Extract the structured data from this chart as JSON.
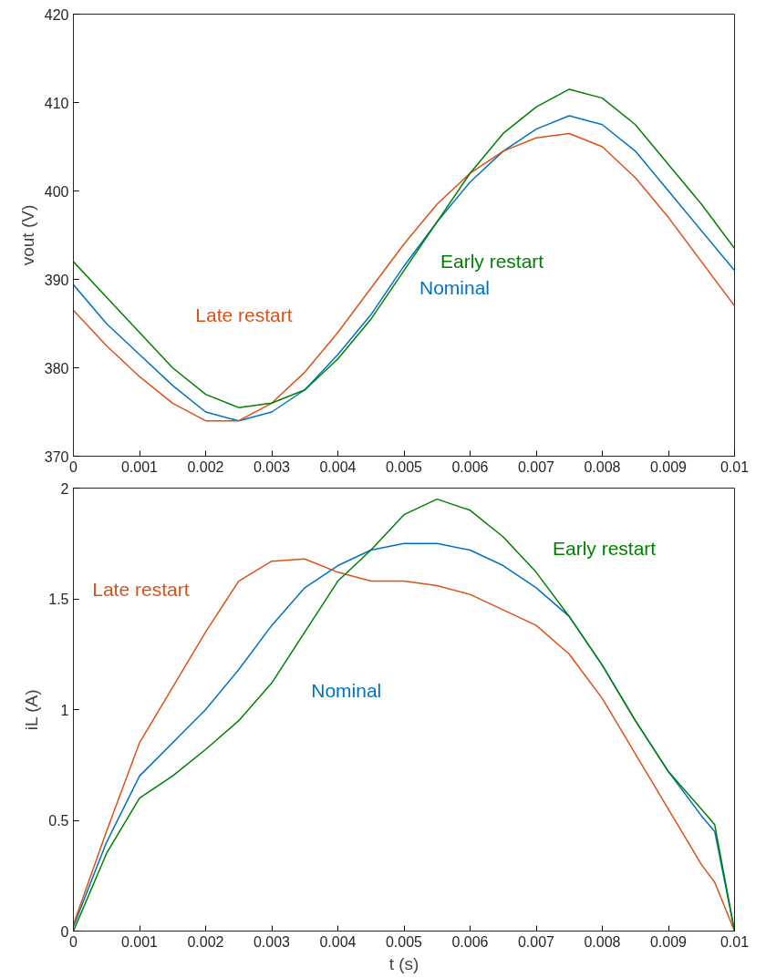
{
  "chart_data": [
    {
      "type": "line",
      "ylabel": "vout (V)",
      "xlim": [
        0,
        0.01
      ],
      "ylim": [
        370,
        420
      ],
      "xticks": [
        0,
        0.001,
        0.002,
        0.003,
        0.004,
        0.005,
        0.006,
        0.007,
        0.008,
        0.009,
        0.01
      ],
      "yticks": [
        370,
        380,
        390,
        400,
        410,
        420
      ],
      "grid": false,
      "marker": "none",
      "line_style": "solid",
      "x": [
        0,
        0.0005,
        0.001,
        0.0015,
        0.002,
        0.0025,
        0.003,
        0.0035,
        0.004,
        0.0045,
        0.005,
        0.0055,
        0.006,
        0.0065,
        0.007,
        0.0075,
        0.008,
        0.0085,
        0.009,
        0.0095,
        0.01
      ],
      "series": [
        {
          "name": "Nominal",
          "color": "#0072bd",
          "values": [
            389.4,
            385,
            381.5,
            378,
            375,
            374,
            375,
            377.5,
            381.5,
            386,
            391.5,
            396.5,
            401,
            404.5,
            407,
            408.5,
            407.5,
            404.5,
            400,
            395.5,
            391
          ]
        },
        {
          "name": "Late restart",
          "color": "#d95319",
          "values": [
            386.5,
            382.5,
            379,
            376,
            374,
            374,
            376,
            379.5,
            384,
            389,
            394,
            398.5,
            402,
            404.5,
            406,
            406.5,
            405,
            401.5,
            397,
            392,
            387
          ]
        },
        {
          "name": "Early restart",
          "color": "#008000",
          "values": [
            392,
            388,
            384,
            380,
            377,
            375.5,
            376,
            377.5,
            381,
            385.5,
            391,
            396.5,
            402,
            406.5,
            409.5,
            411.5,
            410.5,
            407.5,
            403,
            398.5,
            393.5
          ]
        }
      ]
    },
    {
      "type": "line",
      "xlabel": "t (s)",
      "ylabel": "iL (A)",
      "xlim": [
        0,
        0.01
      ],
      "ylim": [
        0,
        2
      ],
      "xticks": [
        0,
        0.001,
        0.002,
        0.003,
        0.004,
        0.005,
        0.006,
        0.007,
        0.008,
        0.009,
        0.01
      ],
      "yticks": [
        0,
        0.5,
        1,
        1.5,
        2
      ],
      "grid": false,
      "marker": "none",
      "line_style": "solid",
      "x": [
        0,
        0.0005,
        0.001,
        0.0015,
        0.002,
        0.0025,
        0.003,
        0.0035,
        0.004,
        0.0045,
        0.005,
        0.0055,
        0.006,
        0.0065,
        0.007,
        0.0075,
        0.008,
        0.0085,
        0.009,
        0.0095,
        0.0097,
        0.01
      ],
      "series": [
        {
          "name": "Nominal",
          "color": "#0072bd",
          "values": [
            0.02,
            0.4,
            0.7,
            0.85,
            1.0,
            1.18,
            1.38,
            1.55,
            1.65,
            1.72,
            1.75,
            1.75,
            1.72,
            1.65,
            1.55,
            1.42,
            1.2,
            0.95,
            0.72,
            0.52,
            0.45,
            0.0
          ]
        },
        {
          "name": "Late restart",
          "color": "#d95319",
          "values": [
            0.03,
            0.45,
            0.85,
            1.1,
            1.35,
            1.58,
            1.67,
            1.68,
            1.62,
            1.58,
            1.58,
            1.56,
            1.52,
            1.45,
            1.38,
            1.25,
            1.05,
            0.8,
            0.55,
            0.3,
            0.22,
            0.0
          ]
        },
        {
          "name": "Early restart",
          "color": "#008000",
          "values": [
            0.0,
            0.35,
            0.6,
            0.7,
            0.82,
            0.95,
            1.12,
            1.35,
            1.58,
            1.72,
            1.88,
            1.95,
            1.9,
            1.78,
            1.62,
            1.42,
            1.2,
            0.95,
            0.72,
            0.55,
            0.48,
            0.0
          ]
        }
      ]
    }
  ]
}
